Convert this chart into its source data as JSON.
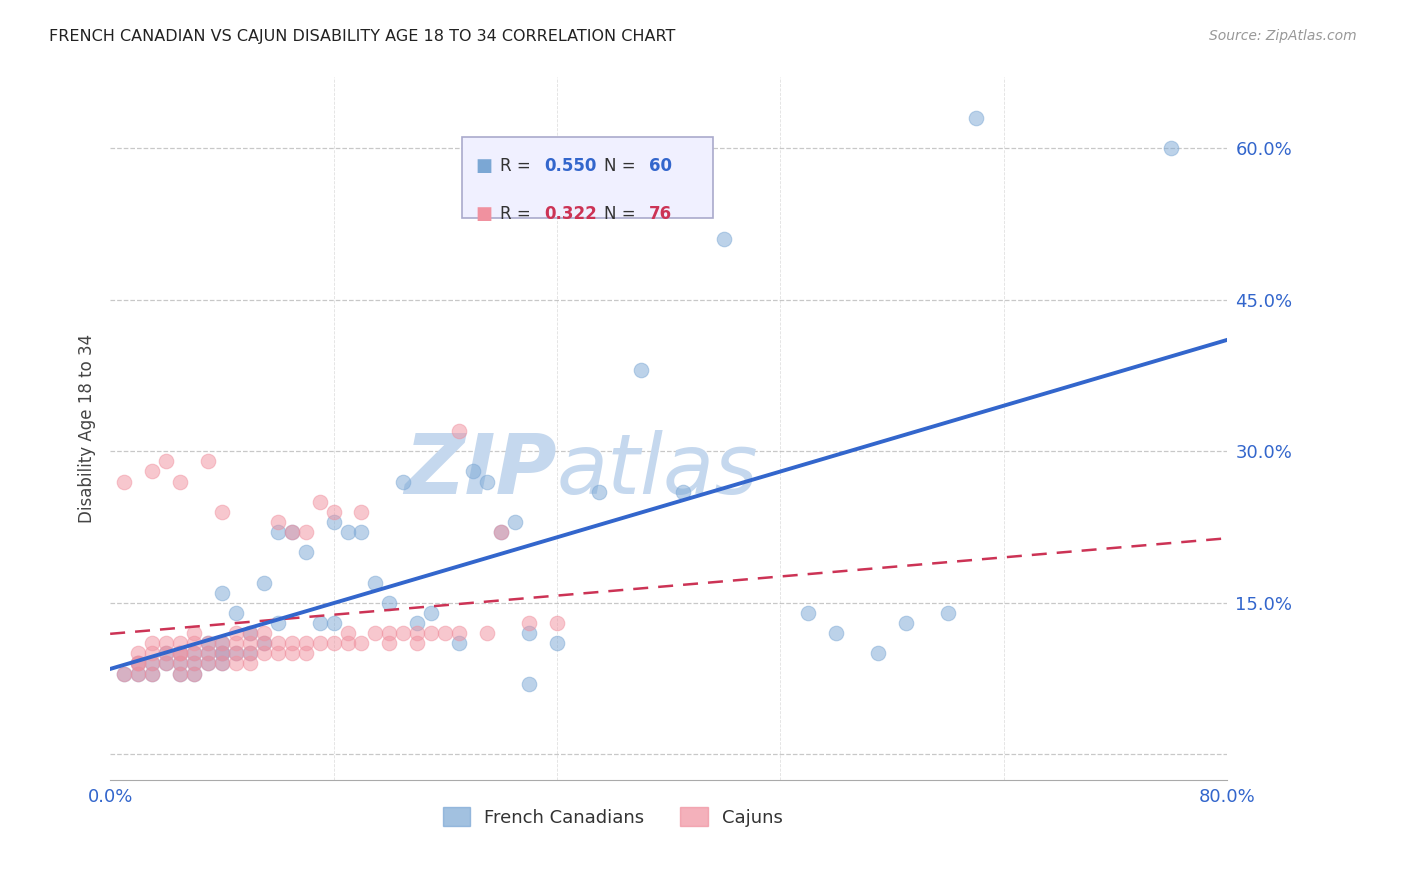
{
  "title": "FRENCH CANADIAN VS CAJUN DISABILITY AGE 18 TO 34 CORRELATION CHART",
  "source": "Source: ZipAtlas.com",
  "ylabel": "Disability Age 18 to 34",
  "ytick_values": [
    0.0,
    0.15,
    0.3,
    0.45,
    0.6
  ],
  "ytick_labels": [
    "",
    "15.0%",
    "30.0%",
    "45.0%",
    "60.0%"
  ],
  "xlim": [
    0.0,
    0.8
  ],
  "ylim": [
    -0.025,
    0.67
  ],
  "french_canadian_R": 0.55,
  "french_canadian_N": 60,
  "cajun_R": 0.322,
  "cajun_N": 76,
  "blue_scatter_color": "#7BA7D4",
  "pink_scatter_color": "#F0919F",
  "blue_line_color": "#3366CC",
  "pink_line_color": "#CC3355",
  "background_color": "#FFFFFF",
  "watermark_color": "#D8E8F5",
  "french_canadian_x": [
    0.01,
    0.02,
    0.02,
    0.03,
    0.03,
    0.04,
    0.04,
    0.05,
    0.05,
    0.05,
    0.06,
    0.06,
    0.06,
    0.07,
    0.07,
    0.07,
    0.08,
    0.08,
    0.08,
    0.08,
    0.08,
    0.09,
    0.09,
    0.1,
    0.1,
    0.11,
    0.11,
    0.12,
    0.12,
    0.13,
    0.14,
    0.15,
    0.16,
    0.16,
    0.17,
    0.18,
    0.19,
    0.2,
    0.21,
    0.22,
    0.23,
    0.25,
    0.26,
    0.27,
    0.28,
    0.29,
    0.3,
    0.3,
    0.32,
    0.35,
    0.38,
    0.41,
    0.44,
    0.5,
    0.52,
    0.55,
    0.57,
    0.6,
    0.62,
    0.76
  ],
  "french_canadian_y": [
    0.08,
    0.08,
    0.09,
    0.08,
    0.09,
    0.09,
    0.1,
    0.08,
    0.09,
    0.1,
    0.08,
    0.09,
    0.1,
    0.09,
    0.1,
    0.11,
    0.09,
    0.1,
    0.1,
    0.11,
    0.16,
    0.1,
    0.14,
    0.1,
    0.12,
    0.11,
    0.17,
    0.13,
    0.22,
    0.22,
    0.2,
    0.13,
    0.13,
    0.23,
    0.22,
    0.22,
    0.17,
    0.15,
    0.27,
    0.13,
    0.14,
    0.11,
    0.28,
    0.27,
    0.22,
    0.23,
    0.07,
    0.12,
    0.11,
    0.26,
    0.38,
    0.26,
    0.51,
    0.14,
    0.12,
    0.1,
    0.13,
    0.14,
    0.63,
    0.6
  ],
  "cajun_x": [
    0.01,
    0.01,
    0.02,
    0.02,
    0.02,
    0.02,
    0.03,
    0.03,
    0.03,
    0.03,
    0.03,
    0.04,
    0.04,
    0.04,
    0.04,
    0.05,
    0.05,
    0.05,
    0.05,
    0.05,
    0.05,
    0.06,
    0.06,
    0.06,
    0.06,
    0.06,
    0.07,
    0.07,
    0.07,
    0.07,
    0.08,
    0.08,
    0.08,
    0.08,
    0.09,
    0.09,
    0.09,
    0.09,
    0.1,
    0.1,
    0.1,
    0.1,
    0.11,
    0.11,
    0.11,
    0.12,
    0.12,
    0.12,
    0.13,
    0.13,
    0.13,
    0.14,
    0.14,
    0.14,
    0.15,
    0.15,
    0.16,
    0.16,
    0.17,
    0.17,
    0.18,
    0.18,
    0.19,
    0.2,
    0.2,
    0.21,
    0.22,
    0.22,
    0.23,
    0.24,
    0.25,
    0.25,
    0.27,
    0.28,
    0.3,
    0.32
  ],
  "cajun_y": [
    0.08,
    0.27,
    0.08,
    0.09,
    0.09,
    0.1,
    0.08,
    0.09,
    0.1,
    0.11,
    0.28,
    0.09,
    0.1,
    0.11,
    0.29,
    0.08,
    0.09,
    0.1,
    0.1,
    0.11,
    0.27,
    0.08,
    0.09,
    0.1,
    0.11,
    0.12,
    0.09,
    0.1,
    0.11,
    0.29,
    0.09,
    0.1,
    0.11,
    0.24,
    0.09,
    0.1,
    0.11,
    0.12,
    0.09,
    0.1,
    0.11,
    0.12,
    0.1,
    0.11,
    0.12,
    0.1,
    0.11,
    0.23,
    0.1,
    0.11,
    0.22,
    0.1,
    0.11,
    0.22,
    0.11,
    0.25,
    0.11,
    0.24,
    0.11,
    0.12,
    0.11,
    0.24,
    0.12,
    0.11,
    0.12,
    0.12,
    0.11,
    0.12,
    0.12,
    0.12,
    0.12,
    0.32,
    0.12,
    0.22,
    0.13,
    0.13
  ]
}
